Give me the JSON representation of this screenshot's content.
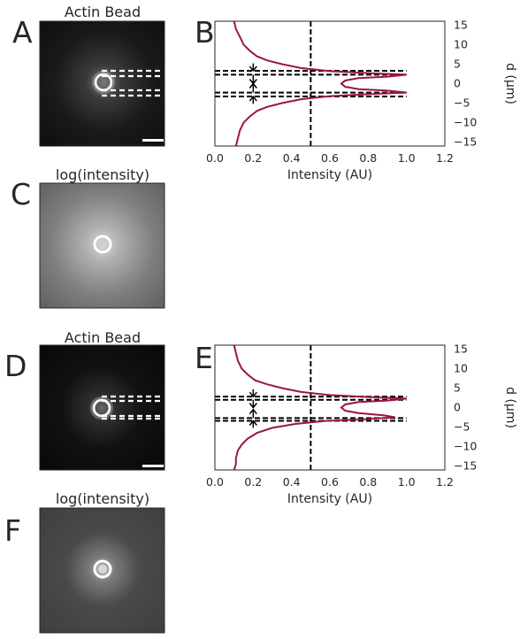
{
  "panels": {
    "A": {
      "letter": "A",
      "title": "Actin Bead"
    },
    "B": {
      "letter": "B"
    },
    "C": {
      "letter": "C",
      "title": "log(intensity)"
    },
    "D": {
      "letter": "D",
      "title": "Actin Bead"
    },
    "E": {
      "letter": "E"
    },
    "F": {
      "letter": "F",
      "title": "log(intensity)"
    }
  },
  "chart_data": [
    {
      "panel": "B",
      "type": "line",
      "xlabel": "Intensity (AU)",
      "ylabel": "d (μm)",
      "xlim": [
        0.0,
        1.2
      ],
      "ylim": [
        -16,
        16
      ],
      "xticks": [
        "0.0",
        "0.2",
        "0.4",
        "0.6",
        "0.8",
        "1.0",
        "1.2"
      ],
      "yticks": [
        "15",
        "10",
        "5",
        "0",
        "−5",
        "−10",
        "−15"
      ],
      "ytick_values": [
        15,
        10,
        5,
        0,
        -5,
        -10,
        -15
      ],
      "grid": false,
      "profile": {
        "x": [
          0.1,
          0.11,
          0.13,
          0.15,
          0.18,
          0.22,
          0.27,
          0.35,
          0.45,
          0.6,
          0.8,
          1.0,
          0.9,
          0.75,
          0.68,
          0.66,
          0.68,
          0.75,
          0.9,
          1.0,
          0.8,
          0.6,
          0.45,
          0.35,
          0.27,
          0.22,
          0.18,
          0.15,
          0.13,
          0.12,
          0.11
        ],
        "y": [
          16,
          14,
          12,
          10,
          8.5,
          7,
          6,
          5,
          4,
          3.2,
          2.7,
          2.3,
          1.8,
          1.4,
          0.8,
          0,
          -0.8,
          -1.4,
          -1.8,
          -2.3,
          -2.7,
          -3.2,
          -4,
          -5,
          -6,
          -7,
          -8.5,
          -10,
          -12,
          -14,
          -16
        ]
      },
      "vline_x": 0.5,
      "hlines_y": [
        3.3,
        2.3,
        -2.3,
        -3.3
      ],
      "arrows": [
        {
          "x": 0.2,
          "from": 5.2,
          "to": 3.3
        },
        {
          "x": 0.2,
          "from": 2.3,
          "to": 0
        },
        {
          "x": 0.2,
          "from": -2.3,
          "to": 0
        },
        {
          "x": 0.2,
          "from": -5.2,
          "to": -3.3
        }
      ],
      "line_color": "#9b1640"
    },
    {
      "panel": "E",
      "type": "line",
      "xlabel": "Intensity (AU)",
      "ylabel": "d (μm)",
      "xlim": [
        0.0,
        1.2
      ],
      "ylim": [
        -16,
        16
      ],
      "xticks": [
        "0.0",
        "0.2",
        "0.4",
        "0.6",
        "0.8",
        "1.0",
        "1.2"
      ],
      "yticks": [
        "15",
        "10",
        "5",
        "0",
        "−5",
        "−10",
        "−15"
      ],
      "ytick_values": [
        15,
        10,
        5,
        0,
        -5,
        -10,
        -15
      ],
      "grid": false,
      "profile": {
        "x": [
          0.1,
          0.11,
          0.12,
          0.14,
          0.17,
          0.21,
          0.27,
          0.35,
          0.45,
          0.6,
          0.8,
          1.0,
          0.9,
          0.75,
          0.68,
          0.66,
          0.68,
          0.75,
          0.88,
          0.94,
          0.78,
          0.58,
          0.42,
          0.3,
          0.22,
          0.17,
          0.14,
          0.12,
          0.11,
          0.11,
          0.1
        ],
        "y": [
          16,
          14,
          12,
          10,
          8.5,
          7,
          6,
          5,
          4,
          3.2,
          2.7,
          2.3,
          1.8,
          1.4,
          0.8,
          0,
          -0.8,
          -1.4,
          -2.0,
          -2.5,
          -3.0,
          -3.4,
          -4.2,
          -5.2,
          -6.5,
          -8,
          -9.5,
          -11,
          -13,
          -14.5,
          -16
        ]
      },
      "vline_x": 0.5,
      "hlines_y": [
        2.8,
        2.0,
        -2.7,
        -3.4
      ],
      "arrows": [
        {
          "x": 0.2,
          "from": 4.7,
          "to": 2.8
        },
        {
          "x": 0.2,
          "from": 2.0,
          "to": 0
        },
        {
          "x": 0.2,
          "from": -2.7,
          "to": -0.5
        },
        {
          "x": 0.2,
          "from": -5.2,
          "to": -3.4
        }
      ],
      "line_color": "#9b1640"
    }
  ]
}
